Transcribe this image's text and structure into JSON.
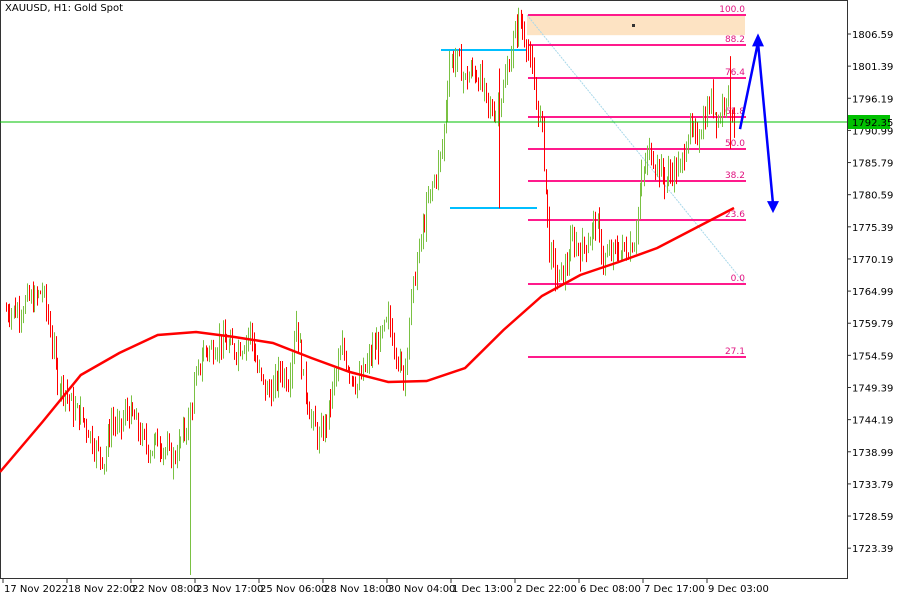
{
  "header": {
    "title": "XAUUSD, H1:  Gold Spot"
  },
  "current_price": {
    "value": 1792.35,
    "label": "1792.35",
    "color": "#00c000"
  },
  "chart_data": {
    "type": "ohlc-bar",
    "symbol": "XAUUSD",
    "timeframe": "H1",
    "title": "XAUUSD, H1:  Gold Spot",
    "grid": false,
    "y_ticks": [
      "1806.59",
      "1801.39",
      "1796.19",
      "1790.99",
      "1785.79",
      "1780.59",
      "1775.39",
      "1770.19",
      "1764.99",
      "1759.79",
      "1754.59",
      "1749.39",
      "1744.19",
      "1738.99",
      "1733.79",
      "1728.59",
      "1723.39"
    ],
    "x_ticks": [
      "17 Nov 2022",
      "18 Nov 22:00",
      "22 Nov 08:00",
      "23 Nov 17:00",
      "25 Nov 06:00",
      "28 Nov 18:00",
      "30 Nov 04:00",
      "1 Dec 13:00",
      "2 Dec 22:00",
      "6 Dec 08:00",
      "7 Dec 17:00",
      "9 Dec 03:00"
    ],
    "price_path": [
      1761.93,
      1761.93,
      1761.93,
      1763.55,
      1763.55,
      1765.17,
      1758.69,
      1750.6,
      1748.99,
      1745.75,
      1744.94,
      1742.51,
      1739.28,
      1737.66,
      1744.13,
      1742.51,
      1745.75,
      1744.13,
      1740.89,
      1739.28,
      1740.89,
      1739.28,
      1737.66,
      1740.89,
      1744.13,
      1750.6,
      1755.46,
      1755.46,
      1757.08,
      1756.27,
      1755.46,
      1756.27,
      1758.69,
      1752.22,
      1748.99,
      1748.99,
      1752.22,
      1750.6,
      1760.31,
      1750.6,
      1744.13,
      1740.89,
      1744.13,
      1750.6,
      1755.46,
      1752.22,
      1749.79,
      1752.22,
      1755.46,
      1757.08,
      1760.31,
      1755.46,
      1750.6,
      1763.55,
      1771.64,
      1778.11,
      1782.97,
      1787.82,
      1802.38,
      1802.38,
      1799.15,
      1800.76,
      1799.15,
      1794.29,
      1794.29,
      1797.53,
      1804.0,
      1808.86,
      1805.62,
      1797.53,
      1791.06,
      1771.64,
      1766.78,
      1768.4,
      1773.26,
      1771.64,
      1773.26,
      1776.49,
      1770.02,
      1770.83,
      1771.64,
      1771.64,
      1773.26,
      1782.97,
      1787.82,
      1785.39,
      1782.97,
      1784.58,
      1784.58,
      1791.06,
      1789.44,
      1792.67,
      1795.91,
      1792.67,
      1797.53,
      1792.67
    ],
    "moving_average": {
      "color": "#ff0000",
      "values": [
        1735.72,
        1743.81,
        1751.41,
        1754.97,
        1757.88,
        1758.37,
        1757.56,
        1756.59,
        1754.16,
        1751.9,
        1750.28,
        1750.44,
        1752.54,
        1758.69,
        1764.2,
        1767.59,
        1769.7,
        1771.96,
        1775.2,
        1778.43
      ]
    },
    "colors": {
      "up": "#7ac143",
      "down": "#ff0000",
      "fib": "#ff1a8c",
      "zone": "#fde3c3",
      "levels": "#00bfff",
      "arrow": "#0000ff",
      "trend": "#a8d8ea"
    },
    "fibonacci": {
      "from": 1809.66,
      "to": 1766.14,
      "levels": [
        {
          "label": "100.0",
          "price": 1809.66
        },
        {
          "label": "88.2",
          "price": 1804.81
        },
        {
          "label": "76.4",
          "price": 1799.47
        },
        {
          "label": "61.8",
          "price": 1793.16
        },
        {
          "label": "50.0",
          "price": 1787.98
        },
        {
          "label": "38.2",
          "price": 1782.8
        },
        {
          "label": "23.6",
          "price": 1776.49
        },
        {
          "label": "0.0",
          "price": 1766.14
        },
        {
          "label": "27.1",
          "price": 1754.32
        }
      ]
    },
    "supply_zone": {
      "top": 1809.66,
      "bottom": 1806.4
    },
    "horizontal_levels": [
      1804.0,
      1778.43
    ],
    "projection_arrow": {
      "start": 1791.2,
      "peak": 1806.2,
      "end": 1778.1
    }
  }
}
